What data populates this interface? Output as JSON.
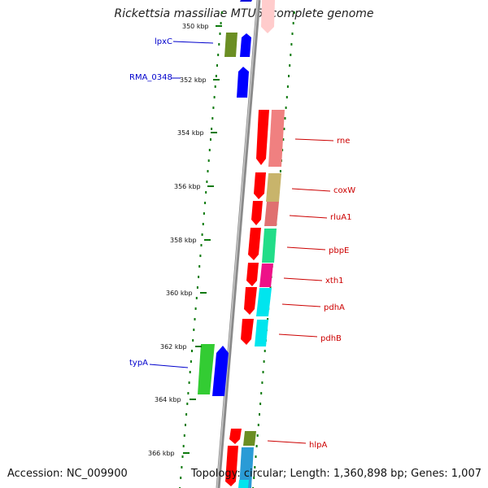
{
  "title": "Rickettsia massiliae MTU5, complete genome",
  "footer": {
    "accession": "Accession: NC_009900",
    "topology": "Topology: circular; Length: 1,360,898 bp; Genes: 1,007"
  },
  "position_ticks": [
    "350 kbp",
    "352 kbp",
    "354 kbp",
    "356 kbp",
    "358 kbp",
    "360 kbp",
    "362 kbp",
    "364 kbp",
    "366 kbp"
  ],
  "gene_labels": [
    "lpxC",
    "RMA_0348",
    "rne",
    "coxW",
    "rluA1",
    "pbpE",
    "xth1",
    "pdhA",
    "pdhB",
    "typA",
    "hlpA"
  ],
  "colors": {
    "backbone": "#888888",
    "dots": "#0d7a0d",
    "forward_label": "#0000cc",
    "reverse_label": "#cc0000"
  }
}
